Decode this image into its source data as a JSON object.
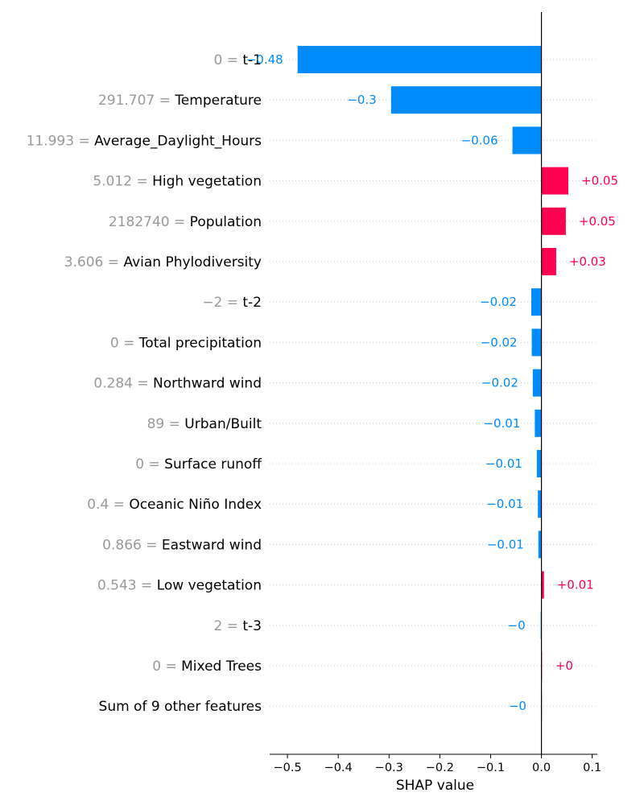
{
  "chart_data": {
    "type": "bar",
    "orientation": "horizontal",
    "xlabel": "SHAP value",
    "xlim": [
      -0.535,
      0.11
    ],
    "xticks": [
      {
        "value": -0.5,
        "label": "−0.5"
      },
      {
        "value": -0.4,
        "label": "−0.4"
      },
      {
        "value": -0.3,
        "label": "−0.3"
      },
      {
        "value": -0.2,
        "label": "−0.2"
      },
      {
        "value": -0.1,
        "label": "−0.1"
      },
      {
        "value": 0.0,
        "label": "0.0"
      },
      {
        "value": 0.1,
        "label": "0.1"
      }
    ],
    "grid": "dotted horizontal",
    "colors": {
      "negative": "#008bfb",
      "positive": "#ff0051",
      "zero": "#cccccc"
    },
    "rows": [
      {
        "value_text": "0 = ",
        "feature": "t-1",
        "shap": -0.48,
        "bar_label": "−0.48"
      },
      {
        "value_text": "291.707 = ",
        "feature": "Temperature",
        "shap": -0.296,
        "bar_label": "−0.3"
      },
      {
        "value_text": "11.993 = ",
        "feature": "Average_Daylight_Hours",
        "shap": -0.057,
        "bar_label": "−0.06"
      },
      {
        "value_text": "5.012 = ",
        "feature": "High vegetation",
        "shap": 0.053,
        "bar_label": "+0.05"
      },
      {
        "value_text": "2182740 = ",
        "feature": "Population",
        "shap": 0.048,
        "bar_label": "+0.05"
      },
      {
        "value_text": "3.606 = ",
        "feature": "Avian Phylodiversity",
        "shap": 0.029,
        "bar_label": "+0.03"
      },
      {
        "value_text": "−2 = ",
        "feature": "t-2",
        "shap": -0.02,
        "bar_label": "−0.02"
      },
      {
        "value_text": "0 = ",
        "feature": "Total precipitation",
        "shap": -0.019,
        "bar_label": "−0.02"
      },
      {
        "value_text": "0.284 = ",
        "feature": "Northward wind",
        "shap": -0.017,
        "bar_label": "−0.02"
      },
      {
        "value_text": "89 = ",
        "feature": "Urban/Built",
        "shap": -0.013,
        "bar_label": "−0.01"
      },
      {
        "value_text": "0 = ",
        "feature": "Surface runoff",
        "shap": -0.009,
        "bar_label": "−0.01"
      },
      {
        "value_text": "0.4 = ",
        "feature": "Oceanic Niño Index",
        "shap": -0.007,
        "bar_label": "−0.01"
      },
      {
        "value_text": "0.866 = ",
        "feature": "Eastward wind",
        "shap": -0.006,
        "bar_label": "−0.01"
      },
      {
        "value_text": "0.543 = ",
        "feature": "Low vegetation",
        "shap": 0.005,
        "bar_label": "+0.01"
      },
      {
        "value_text": "2 = ",
        "feature": "t-3",
        "shap": -0.003,
        "bar_label": "−0"
      },
      {
        "value_text": "0 = ",
        "feature": "Mixed Trees",
        "shap": 0.002,
        "bar_label": "+0"
      },
      {
        "value_text": "",
        "feature": "Sum of 9 other features",
        "shap": -0.001,
        "bar_label": "−0"
      }
    ]
  }
}
